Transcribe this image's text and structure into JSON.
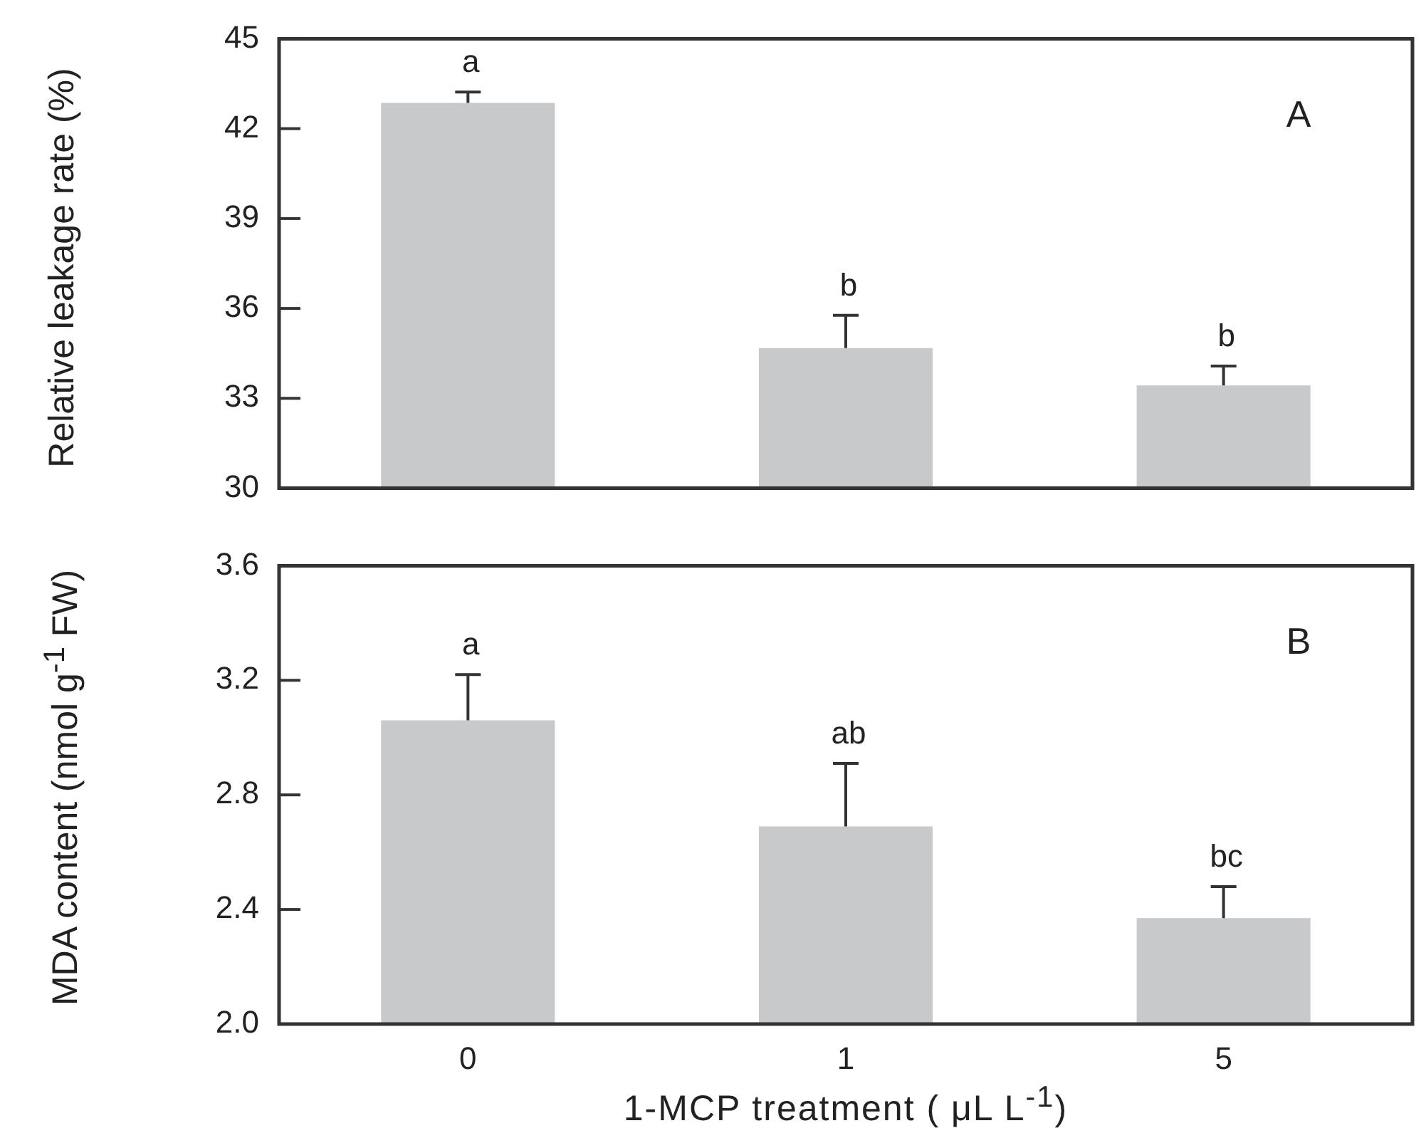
{
  "chart_data": [
    {
      "type": "bar",
      "ylabel": "Relative leakage rate (%)",
      "categories": [
        "0",
        "1",
        "5"
      ],
      "values": [
        42.86,
        34.68,
        33.43
      ],
      "errors": [
        0.36,
        1.09,
        0.65
      ],
      "color": "#c8c9cb",
      "ylim": [
        30,
        45
      ],
      "yticks": [
        30,
        33,
        36,
        39,
        42,
        45
      ],
      "tick_labels": "y",
      "grid": false,
      "legend": false,
      "annotations": [
        "A",
        "a",
        "b",
        "b"
      ]
    },
    {
      "type": "bar",
      "ylabel": "MDA content (nmol g$^{-1}$ FW)",
      "xlabel": "1-MCP treatment ( μL L$^{-1}$)",
      "categories": [
        "0",
        "1",
        "5"
      ],
      "values": [
        3.06,
        2.69,
        2.37
      ],
      "errors": [
        0.16,
        0.22,
        0.11
      ],
      "color": "#c8c9cb",
      "ylim": [
        2.0,
        3.6
      ],
      "yticks": [
        {
          "value": 2.0,
          "label": "2.0"
        },
        {
          "value": 2.4,
          "label": "2.4"
        },
        {
          "value": 2.8,
          "label": "2.8"
        },
        {
          "value": 3.2,
          "label": "3.2"
        },
        {
          "value": 3.6,
          "label": "3.6"
        }
      ],
      "grid": false,
      "legend": false,
      "annotations": [
        "B",
        "a",
        "ab",
        "bc"
      ]
    }
  ]
}
